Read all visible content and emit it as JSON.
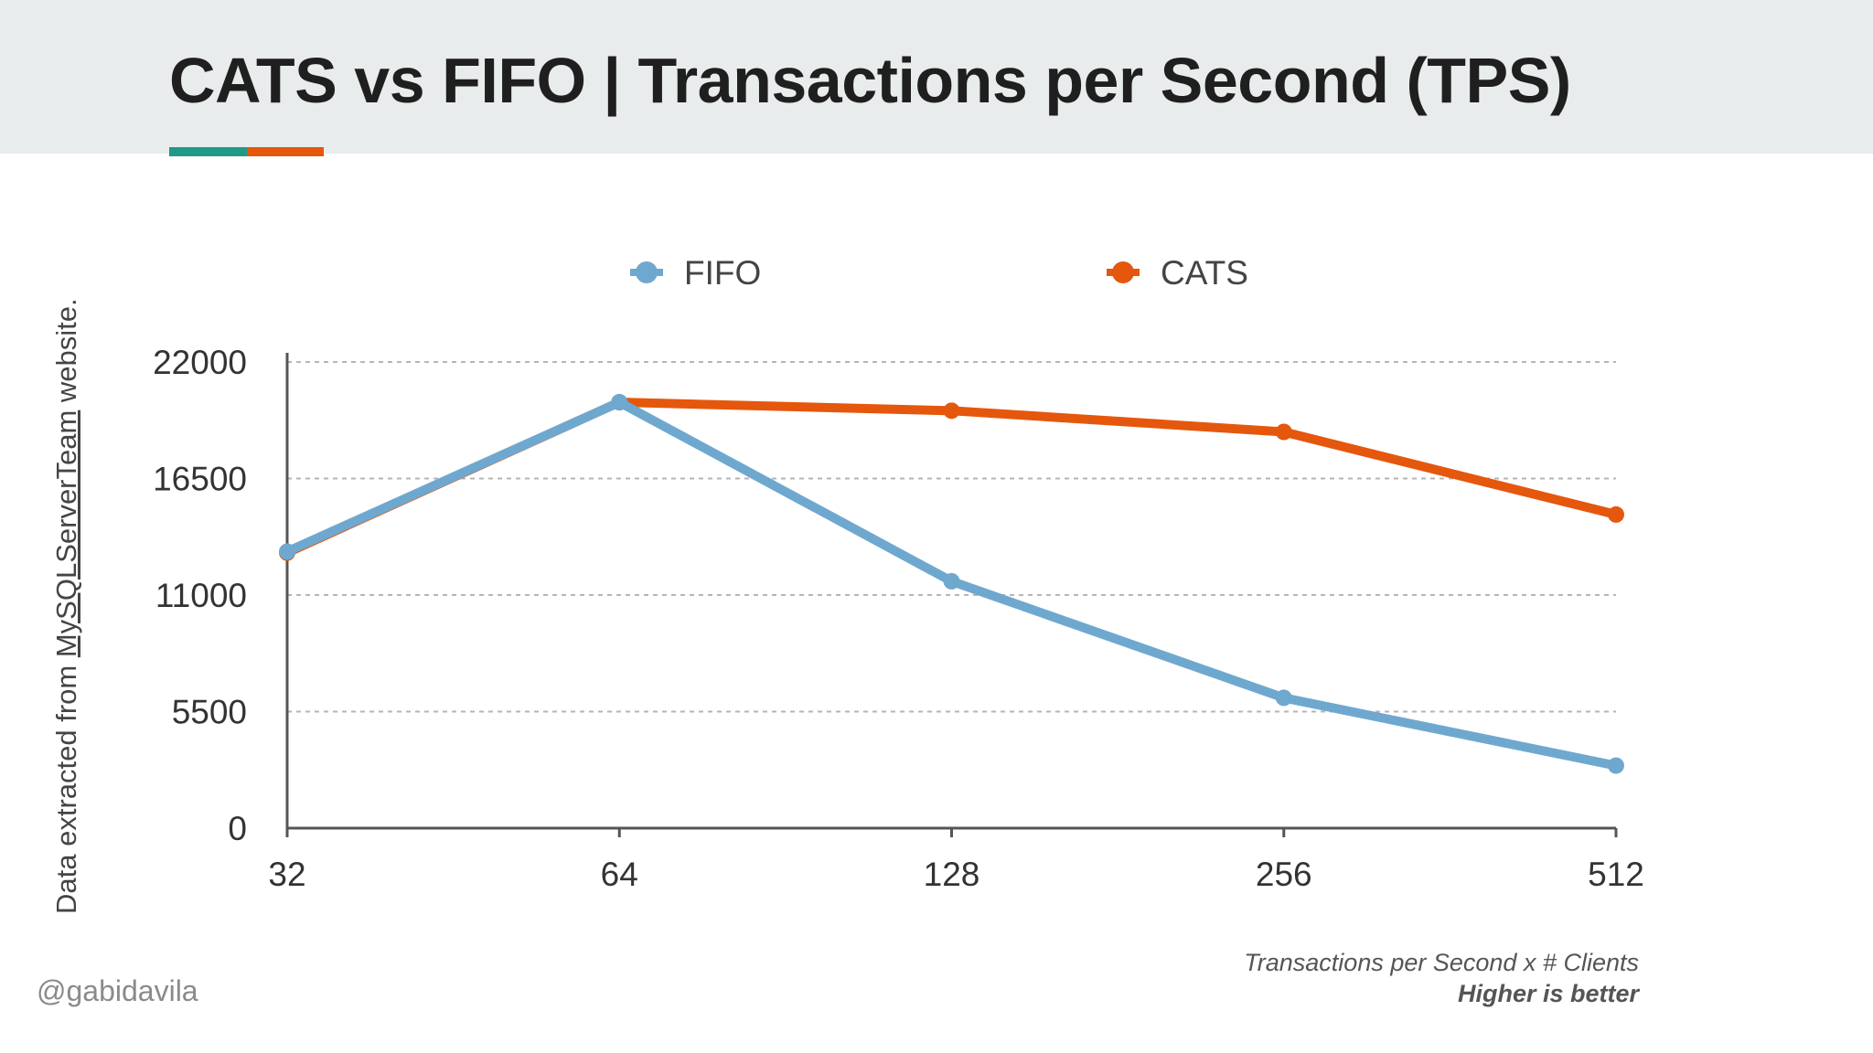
{
  "header": {
    "title": "CATS vs FIFO | Transactions per Second (TPS)"
  },
  "side_note": {
    "prefix": "Data extracted from ",
    "link": "MySQLServerTeam",
    "suffix": " website."
  },
  "handle": "@gabidavila",
  "note": {
    "line1": "Transactions per Second x # Clients",
    "line2": "Higher is better"
  },
  "colors": {
    "header_bg": "#e9ecec",
    "accent_teal": "#1e9a86",
    "accent_orange": "#e5570c",
    "fifo": "#6fa8cf",
    "cats": "#e5570c"
  },
  "chart_data": {
    "type": "line",
    "title": "",
    "xlabel": "",
    "ylabel": "",
    "categories": [
      "32",
      "64",
      "128",
      "256",
      "512"
    ],
    "series": [
      {
        "name": "FIFO",
        "values": [
          13050,
          20100,
          11650,
          6150,
          2950
        ]
      },
      {
        "name": "CATS",
        "values": [
          13000,
          20100,
          19700,
          18700,
          14800
        ]
      }
    ],
    "ylim": [
      0,
      22000
    ],
    "yticks": [
      0,
      5500,
      11000,
      16500,
      22000
    ],
    "grid": true,
    "legend": "top-center"
  }
}
